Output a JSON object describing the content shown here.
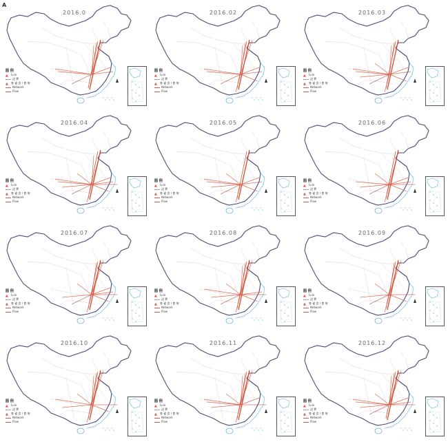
{
  "panel_label": "A",
  "panels": [
    {
      "title": "2016.0"
    },
    {
      "title": "2016.02"
    },
    {
      "title": "2016.03"
    },
    {
      "title": "2016.04"
    },
    {
      "title": "2016.05"
    },
    {
      "title": "2016.06"
    },
    {
      "title": "2016.07"
    },
    {
      "title": "2016.08"
    },
    {
      "title": "2016.09"
    },
    {
      "title": "2016.10"
    },
    {
      "title": "2016.11"
    },
    {
      "title": "2016.12"
    }
  ],
  "legend": {
    "title": "图 例",
    "items": [
      "Link",
      "边 界",
      "各 省 会 / 首 府",
      "Network",
      "Flow"
    ]
  },
  "colors": {
    "network": "#d4553d",
    "border": "#4a4a7a",
    "coast": "#63b5d8",
    "internal": "#9a9a9a"
  }
}
